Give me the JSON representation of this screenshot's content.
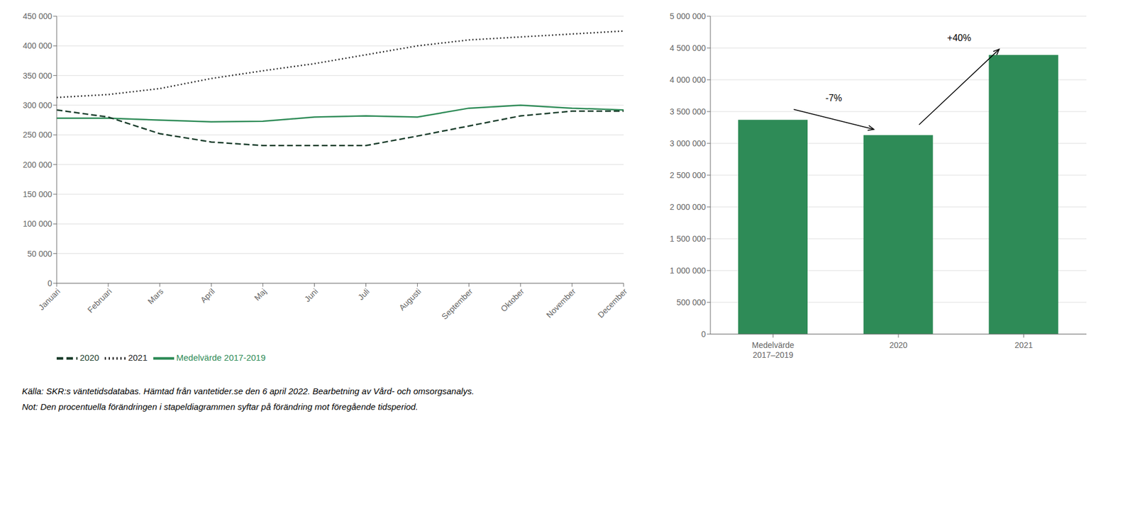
{
  "chart_data": [
    {
      "type": "line",
      "categories": [
        "Januari",
        "Februari",
        "Mars",
        "April",
        "Maj",
        "Juni",
        "Juli",
        "Augusti",
        "September",
        "Oktober",
        "November",
        "December"
      ],
      "series": [
        {
          "name": "Medelvärde 2017-2019",
          "color": "#2e8b57",
          "line_style": "solid",
          "values": [
            278000,
            278000,
            275000,
            272000,
            273000,
            280000,
            282000,
            280000,
            295000,
            300000,
            295000,
            292000
          ]
        },
        {
          "name": "2020",
          "color": "#1a3d2b",
          "line_style": "dashed",
          "values": [
            292000,
            280000,
            252000,
            238000,
            232000,
            232000,
            232000,
            248000,
            265000,
            282000,
            290000,
            290000
          ]
        },
        {
          "name": "2021",
          "color": "#222222",
          "line_style": "dotted",
          "values": [
            313000,
            318000,
            328000,
            345000,
            358000,
            370000,
            385000,
            400000,
            410000,
            415000,
            420000,
            425000
          ]
        }
      ],
      "ylim": [
        0,
        450000
      ],
      "yticks": [
        0,
        {
          "value": 50000,
          "label": "50 000"
        },
        {
          "value": 100000,
          "label": "100 000"
        },
        {
          "value": 150000,
          "label": "150 000"
        },
        {
          "value": 200000,
          "label": "200 000"
        },
        {
          "value": 250000,
          "label": "250 000"
        },
        {
          "value": 300000,
          "label": "300 000"
        },
        {
          "value": 350000,
          "label": "350 000"
        },
        {
          "value": 400000,
          "label": "400 000"
        },
        {
          "value": 450000,
          "label": "450 000"
        }
      ],
      "grid": true,
      "legend": "bottom"
    },
    {
      "type": "bar",
      "categories": [
        "Medelvärde\n2017–2019",
        "2020",
        "2021"
      ],
      "values": [
        3370000,
        3130000,
        4390000
      ],
      "color": "#2e8b57",
      "ylim": [
        0,
        5000000
      ],
      "yticks": [
        0,
        {
          "value": 500000,
          "label": "500 000"
        },
        {
          "value": 1000000,
          "label": "1 000 000"
        },
        {
          "value": 1500000,
          "label": "1 500 000"
        },
        {
          "value": 2000000,
          "label": "2 000 000"
        },
        {
          "value": 2500000,
          "label": "2 500 000"
        },
        {
          "value": 3000000,
          "label": "3 000 000"
        },
        {
          "value": 3500000,
          "label": "3 500 000"
        },
        {
          "value": 4000000,
          "label": "4 000 000"
        },
        {
          "value": 4500000,
          "label": "4 500 000"
        },
        {
          "value": 5000000,
          "label": "5 000 000"
        }
      ],
      "grid": true,
      "annotations": [
        "-7%",
        "+40%"
      ]
    }
  ],
  "source": "Källa: SKR:s väntetidsdatabas. Hämtad från vantetider.se den 6 april 2022. Bearbetning av Vård- och omsorgsanalys.",
  "note": "Not: Den procentuella förändringen i stapeldiagrammen syftar på förändring mot föregående tidsperiod."
}
